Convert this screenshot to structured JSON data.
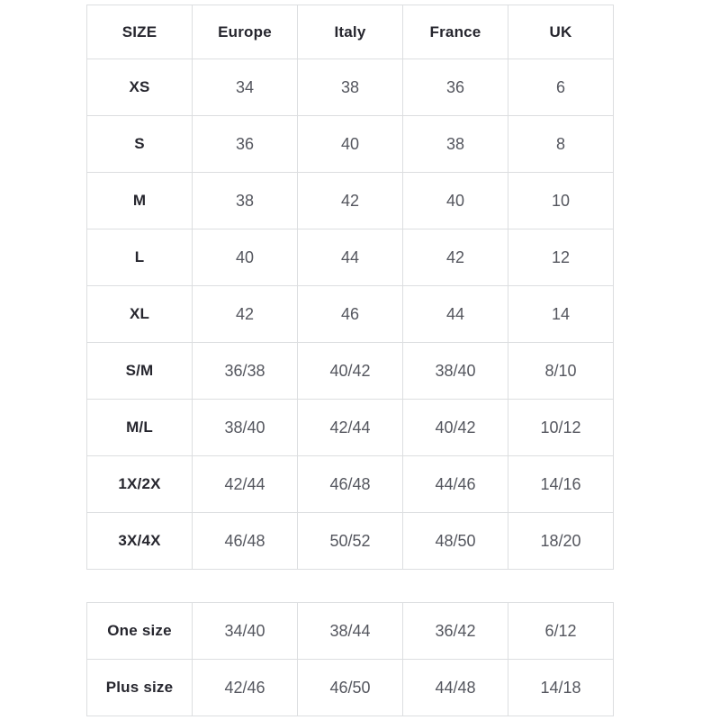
{
  "colors": {
    "background": "#ffffff",
    "border": "#dcdee0",
    "header_text": "#26262e",
    "cell_text": "#54565e"
  },
  "tables": {
    "main": {
      "headers": [
        "SIZE",
        "Europe",
        "Italy",
        "France",
        "UK"
      ],
      "rows": [
        [
          "XS",
          "34",
          "38",
          "36",
          "6"
        ],
        [
          "S",
          "36",
          "40",
          "38",
          "8"
        ],
        [
          "M",
          "38",
          "42",
          "40",
          "10"
        ],
        [
          "L",
          "40",
          "44",
          "42",
          "12"
        ],
        [
          "XL",
          "42",
          "46",
          "44",
          "14"
        ],
        [
          "S/M",
          "36/38",
          "40/42",
          "38/40",
          "8/10"
        ],
        [
          "M/L",
          "38/40",
          "42/44",
          "40/42",
          "10/12"
        ],
        [
          "1X/2X",
          "42/44",
          "46/48",
          "44/46",
          "14/16"
        ],
        [
          "3X/4X",
          "46/48",
          "50/52",
          "48/50",
          "18/20"
        ]
      ]
    },
    "special": {
      "rows": [
        [
          "One size",
          "34/40",
          "38/44",
          "36/42",
          "6/12"
        ],
        [
          "Plus size",
          "42/46",
          "46/50",
          "44/48",
          "14/18"
        ]
      ]
    }
  },
  "chart_data": [
    {
      "type": "table",
      "columns": [
        "SIZE",
        "Europe",
        "Italy",
        "France",
        "UK"
      ],
      "rows": [
        [
          "XS",
          "34",
          "38",
          "36",
          "6"
        ],
        [
          "S",
          "36",
          "40",
          "38",
          "8"
        ],
        [
          "M",
          "38",
          "42",
          "40",
          "10"
        ],
        [
          "L",
          "40",
          "44",
          "42",
          "12"
        ],
        [
          "XL",
          "42",
          "46",
          "44",
          "14"
        ],
        [
          "S/M",
          "36/38",
          "40/42",
          "38/40",
          "8/10"
        ],
        [
          "M/L",
          "38/40",
          "42/44",
          "40/42",
          "10/12"
        ],
        [
          "1X/2X",
          "42/44",
          "46/48",
          "44/46",
          "14/16"
        ],
        [
          "3X/4X",
          "46/48",
          "50/52",
          "48/50",
          "18/20"
        ]
      ]
    },
    {
      "type": "table",
      "rows": [
        [
          "One size",
          "34/40",
          "38/44",
          "36/42",
          "6/12"
        ],
        [
          "Plus size",
          "42/46",
          "46/50",
          "44/48",
          "14/18"
        ]
      ]
    }
  ]
}
